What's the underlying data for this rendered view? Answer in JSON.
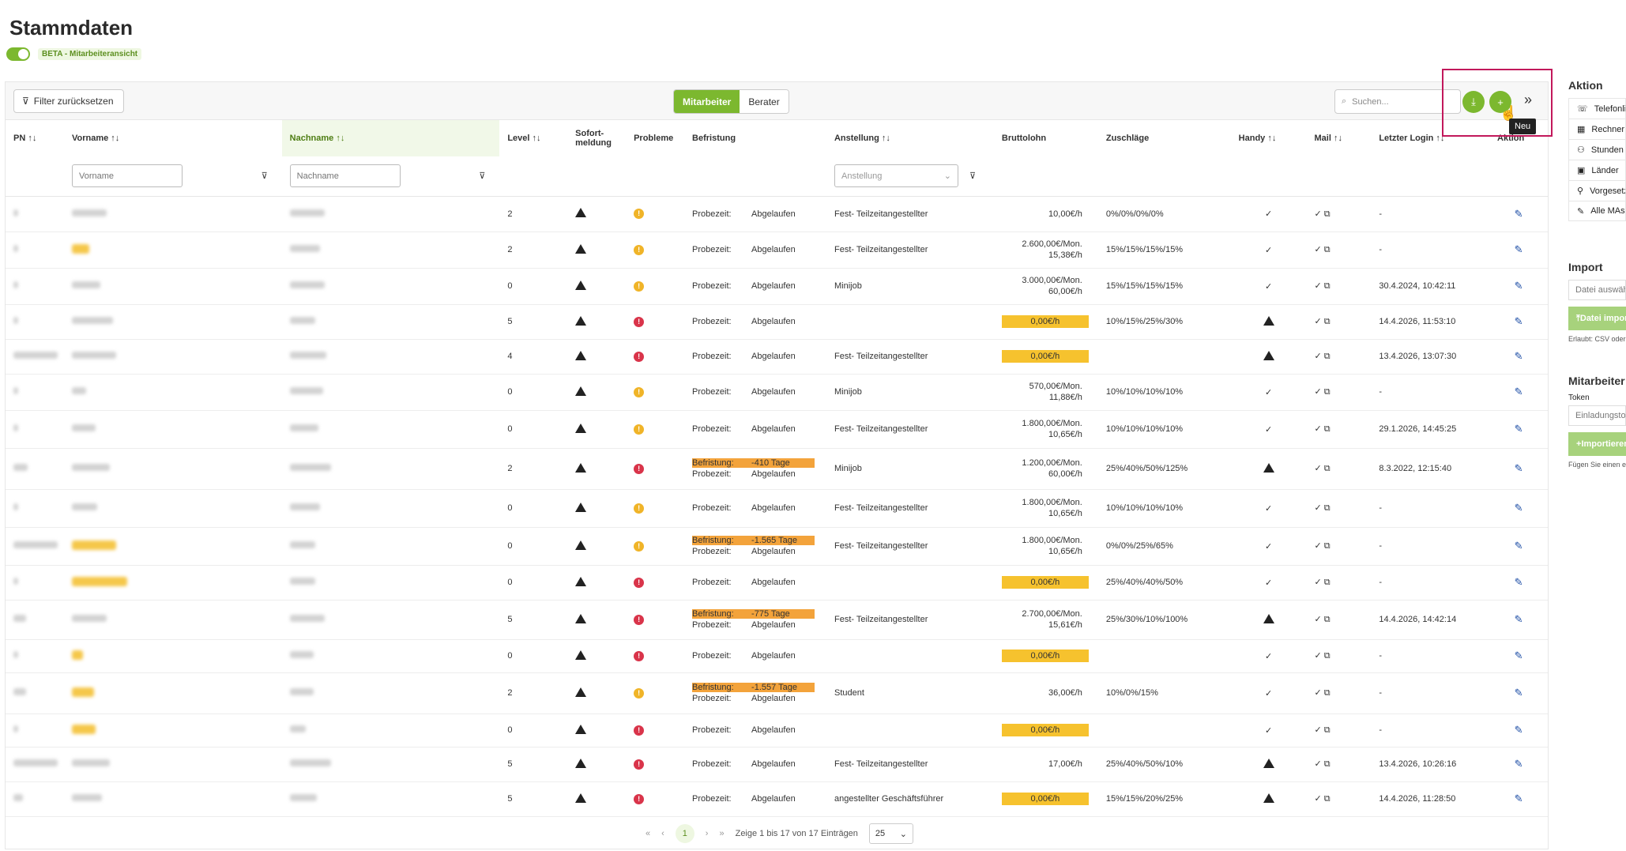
{
  "page": {
    "title": "Stammdaten",
    "beta_label": "BETA - Mitarbeiteransicht"
  },
  "toolbar": {
    "filter_reset": "Filter zurücksetzen",
    "seg_active": "Mitarbeiter",
    "seg_inactive": "Berater",
    "search_placeholder": "Suchen...",
    "tooltip": "Neu"
  },
  "columns": {
    "pn": "PN ↑↓",
    "vorname": "Vorname ↑↓",
    "nachname": "Nachname ↑↓",
    "level": "Level ↑↓",
    "sofort": "Sofort-meldung",
    "probleme": "Probleme",
    "befristung": "Befristung",
    "anstellung": "Anstellung ↑↓",
    "brutto": "Bruttolohn",
    "zuschlaege": "Zuschläge",
    "handy": "Handy ↑↓",
    "mail": "Mail ↑↓",
    "login": "Letzter Login ↑↓",
    "aktion": "Aktion"
  },
  "filters": {
    "vorname": "Vorname",
    "nachname": "Nachname",
    "anstellung": "Anstellung"
  },
  "rows": [
    {
      "level": "2",
      "prob": "y",
      "bef": null,
      "anst": "Fest- Teilzeitangestellter",
      "brutto": [
        "10,00€/h"
      ],
      "chip": false,
      "zus": "0%/0%/0%/0%",
      "handy": "check",
      "login": "-"
    },
    {
      "level": "2",
      "prob": "y",
      "bef": null,
      "anst": "Fest- Teilzeitangestellter",
      "brutto": [
        "2.600,00€/Mon.",
        "15,38€/h"
      ],
      "chip": false,
      "zus": "15%/15%/15%/15%",
      "handy": "check",
      "login": "-"
    },
    {
      "level": "0",
      "prob": "y",
      "bef": null,
      "anst": "Minijob",
      "brutto": [
        "3.000,00€/Mon.",
        "60,00€/h"
      ],
      "chip": false,
      "zus": "15%/15%/15%/15%",
      "handy": "check",
      "login": "30.4.2024, 10:42:11"
    },
    {
      "level": "5",
      "prob": "r",
      "bef": null,
      "anst": "",
      "brutto": [
        "0,00€/h"
      ],
      "chip": true,
      "zus": "10%/15%/25%/30%",
      "handy": "warn",
      "login": "14.4.2026, 11:53:10"
    },
    {
      "level": "4",
      "prob": "r",
      "bef": null,
      "anst": "Fest- Teilzeitangestellter",
      "brutto": [
        "0,00€/h"
      ],
      "chip": true,
      "zus": "",
      "handy": "warn",
      "login": "13.4.2026, 13:07:30"
    },
    {
      "level": "0",
      "prob": "y",
      "bef": null,
      "anst": "Minijob",
      "brutto": [
        "570,00€/Mon.",
        "11,88€/h"
      ],
      "chip": false,
      "zus": "10%/10%/10%/10%",
      "handy": "check",
      "login": "-"
    },
    {
      "level": "0",
      "prob": "y",
      "bef": null,
      "anst": "Fest- Teilzeitangestellter",
      "brutto": [
        "1.800,00€/Mon.",
        "10,65€/h"
      ],
      "chip": false,
      "zus": "10%/10%/10%/10%",
      "handy": "check",
      "login": "29.1.2026, 14:45:25"
    },
    {
      "level": "2",
      "prob": "r",
      "bef": "-410 Tage",
      "anst": "Minijob",
      "brutto": [
        "1.200,00€/Mon.",
        "60,00€/h"
      ],
      "chip": false,
      "zus": "25%/40%/50%/125%",
      "handy": "warn",
      "login": "8.3.2022, 12:15:40"
    },
    {
      "level": "0",
      "prob": "y",
      "bef": null,
      "anst": "Fest- Teilzeitangestellter",
      "brutto": [
        "1.800,00€/Mon.",
        "10,65€/h"
      ],
      "chip": false,
      "zus": "10%/10%/10%/10%",
      "handy": "check",
      "login": "-"
    },
    {
      "level": "0",
      "prob": "y",
      "bef": "-1.565 Tage",
      "anst": "Fest- Teilzeitangestellter",
      "brutto": [
        "1.800,00€/Mon.",
        "10,65€/h"
      ],
      "chip": false,
      "zus": "0%/0%/25%/65%",
      "handy": "check",
      "login": "-"
    },
    {
      "level": "0",
      "prob": "r",
      "bef": null,
      "anst": "",
      "brutto": [
        "0,00€/h"
      ],
      "chip": true,
      "zus": "25%/40%/40%/50%",
      "handy": "check",
      "login": "-"
    },
    {
      "level": "5",
      "prob": "r",
      "bef": "-775 Tage",
      "anst": "Fest- Teilzeitangestellter",
      "brutto": [
        "2.700,00€/Mon.",
        "15,61€/h"
      ],
      "chip": false,
      "zus": "25%/30%/10%/100%",
      "handy": "warn",
      "login": "14.4.2026, 14:42:14"
    },
    {
      "level": "0",
      "prob": "r",
      "bef": null,
      "anst": "",
      "brutto": [
        "0,00€/h"
      ],
      "chip": true,
      "zus": "",
      "handy": "check",
      "login": "-"
    },
    {
      "level": "2",
      "prob": "y",
      "bef": "-1.557 Tage",
      "anst": "Student",
      "brutto": [
        "36,00€/h"
      ],
      "chip": false,
      "zus": "10%/0%/15%",
      "handy": "check",
      "login": "-"
    },
    {
      "level": "0",
      "prob": "r",
      "bef": null,
      "anst": "",
      "brutto": [
        "0,00€/h"
      ],
      "chip": true,
      "zus": "",
      "handy": "check",
      "login": "-"
    },
    {
      "level": "5",
      "prob": "r",
      "bef": null,
      "anst": "Fest- Teilzeitangestellter",
      "brutto": [
        "17,00€/h"
      ],
      "chip": false,
      "zus": "25%/40%/50%/10%",
      "handy": "warn",
      "login": "13.4.2026, 10:26:16"
    },
    {
      "level": "5",
      "prob": "r",
      "bef": null,
      "anst": "angestellter Geschäftsführer",
      "brutto": [
        "0,00€/h"
      ],
      "chip": true,
      "zus": "15%/15%/20%/25%",
      "handy": "warn",
      "login": "14.4.2026, 11:28:50"
    }
  ],
  "bef_labels": {
    "probezeit": "Probezeit:",
    "abgelaufen": "Abgelaufen",
    "befristung": "Befristung:"
  },
  "pager": {
    "current": "1",
    "info": "Zeige 1 bis 17 von 17 Einträgen",
    "size": "25"
  },
  "side": {
    "aktion_title": "Aktion",
    "aktionen": [
      "Telefonliste",
      "Rechner",
      "Stunden",
      "Länder",
      "Vorgesetzte",
      "Alle MAs"
    ],
    "import_title": "Import",
    "import_file": "Datei auswählen",
    "import_btn": "Datei importieren",
    "import_note": "Erlaubt: CSV oder",
    "mitarbeiter_title": "Mitarbeiter",
    "token_label": "Token",
    "token_placeholder": "Einladungstoken",
    "token_btn": "Importieren",
    "token_note": "Fügen Sie einen e"
  }
}
